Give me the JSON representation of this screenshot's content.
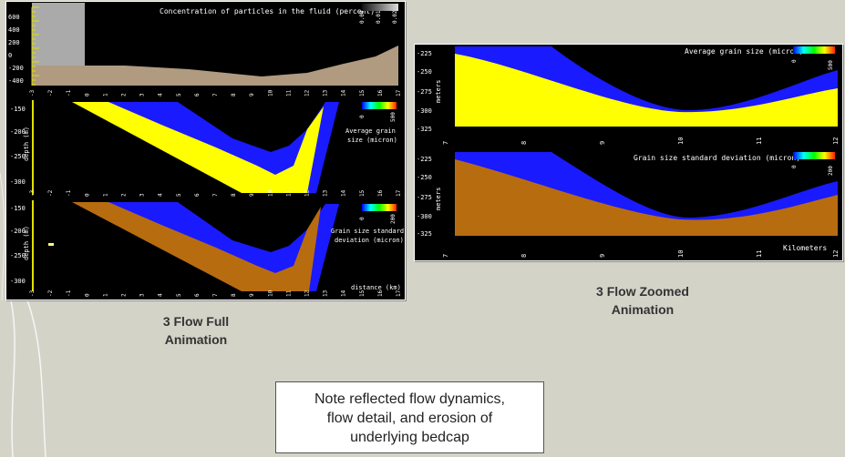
{
  "full_panel": {
    "top_title": "Concentration of particles in the fluid (percent)",
    "top_yticks": [
      "600",
      "400",
      "200",
      "0",
      "-200",
      "-400"
    ],
    "top_colorbar_ticks": [
      "0.00",
      "0.01",
      "0.02"
    ],
    "xticks": [
      "-3",
      "-2",
      "-1",
      "0",
      "1",
      "2",
      "3",
      "4",
      "5",
      "6",
      "7",
      "8",
      "9",
      "10",
      "11",
      "12",
      "13",
      "14",
      "15",
      "16",
      "17"
    ],
    "mid_yticks": [
      "-150",
      "-200",
      "-250",
      "-300"
    ],
    "mid_ylabel": "depth (m)",
    "mid_legend": [
      "Average grain",
      "size  (micron)"
    ],
    "mid_colorbar_ticks": [
      "0",
      "500"
    ],
    "bot_yticks": [
      "-150",
      "-200",
      "-250",
      "-300"
    ],
    "bot_ylabel": "depth (m)",
    "bot_legend": [
      "Grain size standard",
      "deviation  (micron)"
    ],
    "bot_colorbar_ticks": [
      "0",
      "200"
    ],
    "xlabel": "distance (km)"
  },
  "zoom_panel": {
    "top_title": "Average grain size (micron)",
    "top_colorbar_ticks": [
      "0",
      "500"
    ],
    "bot_title": "Grain size standard deviation (micron)",
    "bot_colorbar_ticks": [
      "0",
      "200"
    ],
    "yticks": [
      "-225",
      "-250",
      "-275",
      "-300",
      "-325"
    ],
    "ylabel": "meters",
    "xticks": [
      "7",
      "8",
      "9",
      "10",
      "11",
      "12"
    ],
    "xlabel": "Kilometers"
  },
  "captions": {
    "full_line1": "3 Flow Full",
    "full_line2": "Animation",
    "zoom_line1": "3 Flow Zoomed",
    "zoom_line2": "Animation"
  },
  "note": {
    "line1": "Note reflected flow dynamics,",
    "line2": "flow detail, and erosion of",
    "line3": "underlying bedcap"
  },
  "colors": {
    "flow": "#1a1aff",
    "sand_yellow": "#ffff00",
    "sand_brown": "#b86c10",
    "terrain": "#b09a80",
    "tick_yellow": "#e0e000",
    "background": "#d4d3c8"
  }
}
